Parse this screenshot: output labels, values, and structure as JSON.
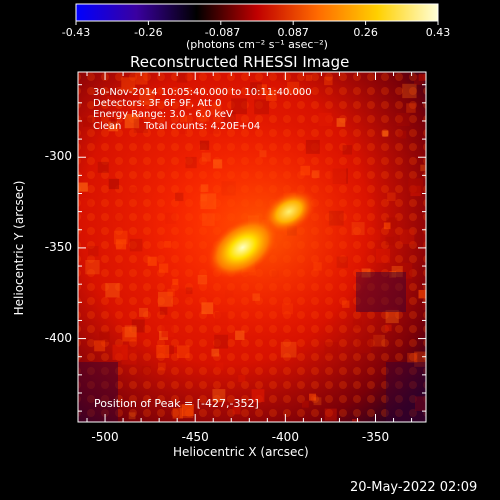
{
  "colorbar": {
    "tick_labels": [
      "-0.43",
      "-0.26",
      "-0.087",
      "0.087",
      "0.26",
      "0.43"
    ],
    "units_label": "(photons cm⁻² s⁻¹ asec⁻²)",
    "colors": [
      "#0000ff",
      "#3a00a0",
      "#000000",
      "#c00000",
      "#ff6a00",
      "#ffd000",
      "#ffffd8"
    ]
  },
  "title": "Reconstructed RHESSI Image",
  "info": {
    "time_range": "30-Nov-2014 10:05:40.000 to 10:11:40.000",
    "detectors": "Detectors: 3F 6F 9F, Att 0",
    "energy_range": "Energy Range: 3.0 - 6.0 keV",
    "method": "Clean",
    "total_counts": "Total counts: 4.20E+04"
  },
  "peak_label": "Position of Peak = [-427,-352]",
  "x_axis": {
    "label": "Heliocentric X (arcsec)",
    "ticks": [
      "-500",
      "-450",
      "-400",
      "-350"
    ],
    "tick_values": [
      -500,
      -450,
      -400,
      -350
    ],
    "range": [
      -515,
      -322
    ]
  },
  "y_axis": {
    "label": "Heliocentric Y (arcsec)",
    "ticks": [
      "-300",
      "-350",
      "-400"
    ],
    "tick_values": [
      -300,
      -350,
      -400
    ],
    "range": [
      -446,
      -253
    ]
  },
  "image": {
    "peak": [
      -427,
      -352
    ],
    "secondary_peak": [
      -398,
      -330
    ]
  },
  "timestamp": "20-May-2022 02:09"
}
